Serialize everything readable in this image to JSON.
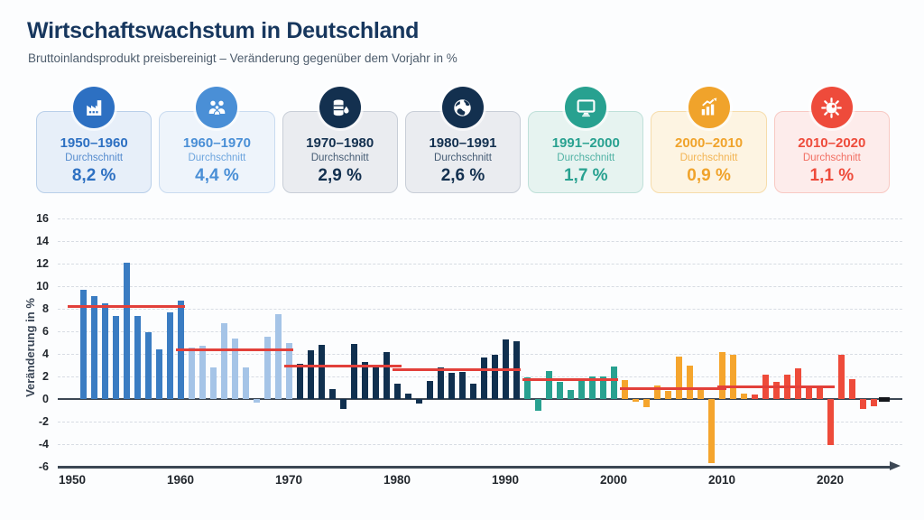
{
  "header": {
    "title": "Wirtschaftswachstum in Deutschland",
    "subtitle": "Bruttoinlandsprodukt preisbereinigt – Veränderung gegenüber dem Vorjahr in %"
  },
  "cards": [
    {
      "period": "1950–1960",
      "label": "Durchschnitt",
      "value": "8,2 %",
      "icon": "factory-icon",
      "color": "#2d70c2",
      "bg": "#e7eff9",
      "border": "#b9cfe9"
    },
    {
      "period": "1960–1970",
      "label": "Durchschnitt",
      "value": "4,4 %",
      "icon": "family-icon",
      "color": "#4a8fd6",
      "bg": "#eef4fb",
      "border": "#c9dbf0"
    },
    {
      "period": "1970–1980",
      "label": "Durchschnitt",
      "value": "2,9 %",
      "icon": "oil-barrel-icon",
      "color": "#13304f",
      "bg": "#eaecf0",
      "border": "#c8ced7"
    },
    {
      "period": "1980–1991",
      "label": "Durchschnitt",
      "value": "2,6 %",
      "icon": "globe-icon",
      "color": "#13304f",
      "bg": "#eaecf0",
      "border": "#c8ced7"
    },
    {
      "period": "1991–2000",
      "label": "Durchschnitt",
      "value": "1,7 %",
      "icon": "monitor-icon",
      "color": "#28a190",
      "bg": "#e6f3f0",
      "border": "#bfe0d9"
    },
    {
      "period": "2000–2010",
      "label": "Durchschnitt",
      "value": "0,9 %",
      "icon": "chart-up-icon",
      "color": "#f0a32b",
      "bg": "#fdf4e2",
      "border": "#f6dcab"
    },
    {
      "period": "2010–2020",
      "label": "Durchschnitt",
      "value": "1,1 %",
      "icon": "virus-icon",
      "color": "#ee4b3b",
      "bg": "#fdeceb",
      "border": "#f8c9c3"
    }
  ],
  "chart_data": {
    "type": "bar",
    "ylabel": "Veränderung in %",
    "ylim": [
      -6,
      16
    ],
    "yticks": [
      16,
      14,
      12,
      10,
      8,
      6,
      4,
      2,
      0,
      -2,
      -4,
      -6
    ],
    "xticks": [
      1950,
      1960,
      1970,
      1980,
      1990,
      2000,
      2010,
      2020
    ],
    "grid": "dashed-horizontal",
    "years": [
      1951,
      1952,
      1953,
      1954,
      1955,
      1956,
      1957,
      1958,
      1959,
      1960,
      1961,
      1962,
      1963,
      1964,
      1965,
      1966,
      1967,
      1968,
      1969,
      1970,
      1971,
      1972,
      1973,
      1974,
      1975,
      1976,
      1977,
      1978,
      1979,
      1980,
      1981,
      1982,
      1983,
      1984,
      1985,
      1986,
      1987,
      1988,
      1989,
      1990,
      1991,
      1992,
      1993,
      1994,
      1995,
      1996,
      1997,
      1998,
      1999,
      2000,
      2001,
      2002,
      2003,
      2004,
      2005,
      2006,
      2007,
      2008,
      2009,
      2010,
      2011,
      2012,
      2013,
      2014,
      2015,
      2016,
      2017,
      2018,
      2019,
      2020,
      2021,
      2022,
      2023,
      2024
    ],
    "values": [
      9.7,
      9.1,
      8.5,
      7.4,
      12.1,
      7.4,
      5.9,
      4.4,
      7.7,
      8.7,
      4.6,
      4.7,
      2.8,
      6.7,
      5.4,
      2.8,
      -0.3,
      5.5,
      7.5,
      5.0,
      3.1,
      4.3,
      4.8,
      0.9,
      -0.9,
      4.9,
      3.3,
      3.0,
      4.2,
      1.4,
      0.5,
      -0.4,
      1.6,
      2.8,
      2.3,
      2.4,
      1.4,
      3.7,
      3.9,
      5.3,
      5.1,
      1.9,
      -1.0,
      2.5,
      1.5,
      0.8,
      1.8,
      2.0,
      2.0,
      2.9,
      1.7,
      -0.2,
      -0.7,
      1.2,
      0.7,
      3.8,
      3.0,
      1.0,
      -5.7,
      4.2,
      3.9,
      0.5,
      0.4,
      2.2,
      1.5,
      2.2,
      2.7,
      1.0,
      1.0,
      -4.1,
      3.9,
      1.8,
      -0.9,
      -0.6
    ],
    "groups": [
      {
        "from": 1951,
        "to": 1960,
        "color": "#3a7cc2"
      },
      {
        "from": 1961,
        "to": 1970,
        "color": "#a5c4e7"
      },
      {
        "from": 1971,
        "to": 1991,
        "color": "#10304f"
      },
      {
        "from": 1992,
        "to": 2000,
        "color": "#28a190"
      },
      {
        "from": 2001,
        "to": 2012,
        "color": "#f5a52d"
      },
      {
        "from": 2013,
        "to": 2024,
        "color": "#ee4b3a"
      }
    ],
    "avg_lines": [
      {
        "from": 1950,
        "to": 1960,
        "value": 8.2
      },
      {
        "from": 1960,
        "to": 1970,
        "value": 4.4
      },
      {
        "from": 1970,
        "to": 1980,
        "value": 2.9
      },
      {
        "from": 1980,
        "to": 1991,
        "value": 2.6
      },
      {
        "from": 1992,
        "to": 2000,
        "value": 1.7
      },
      {
        "from": 2001,
        "to": 2010,
        "value": 0.9
      },
      {
        "from": 2010,
        "to": 2020,
        "value": 1.1
      }
    ],
    "avg_line_color": "#e2403a",
    "end_marker": {
      "year": 2025,
      "value": 0,
      "color": "#15181d"
    }
  }
}
